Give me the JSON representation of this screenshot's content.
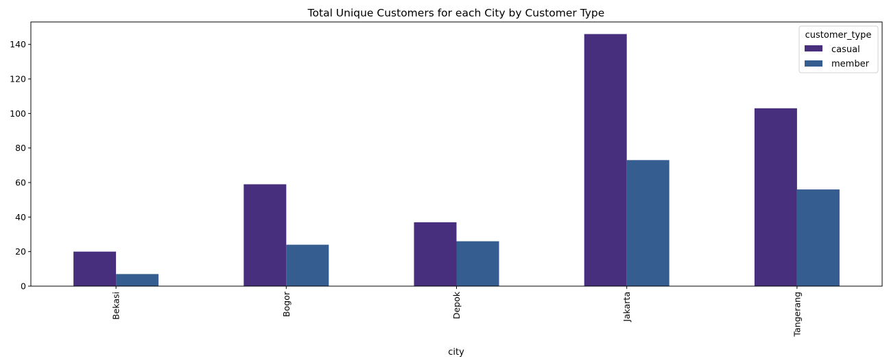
{
  "chart_data": {
    "type": "bar",
    "title": "Total Unique Customers for each City by Customer Type",
    "xlabel": "city",
    "ylabel": "",
    "categories": [
      "Bekasi",
      "Bogor",
      "Depok",
      "Jakarta",
      "Tangerang"
    ],
    "series": [
      {
        "name": "casual",
        "values": [
          20,
          59,
          37,
          146,
          103
        ],
        "color": "#482f7e"
      },
      {
        "name": "member",
        "values": [
          7,
          24,
          26,
          73,
          56
        ],
        "color": "#365d8f"
      }
    ],
    "ylim": [
      0,
      153
    ],
    "yticks": [
      0,
      20,
      40,
      60,
      80,
      100,
      120,
      140
    ],
    "grid": false,
    "legend": {
      "title": "customer_type",
      "position": "top-right"
    }
  }
}
